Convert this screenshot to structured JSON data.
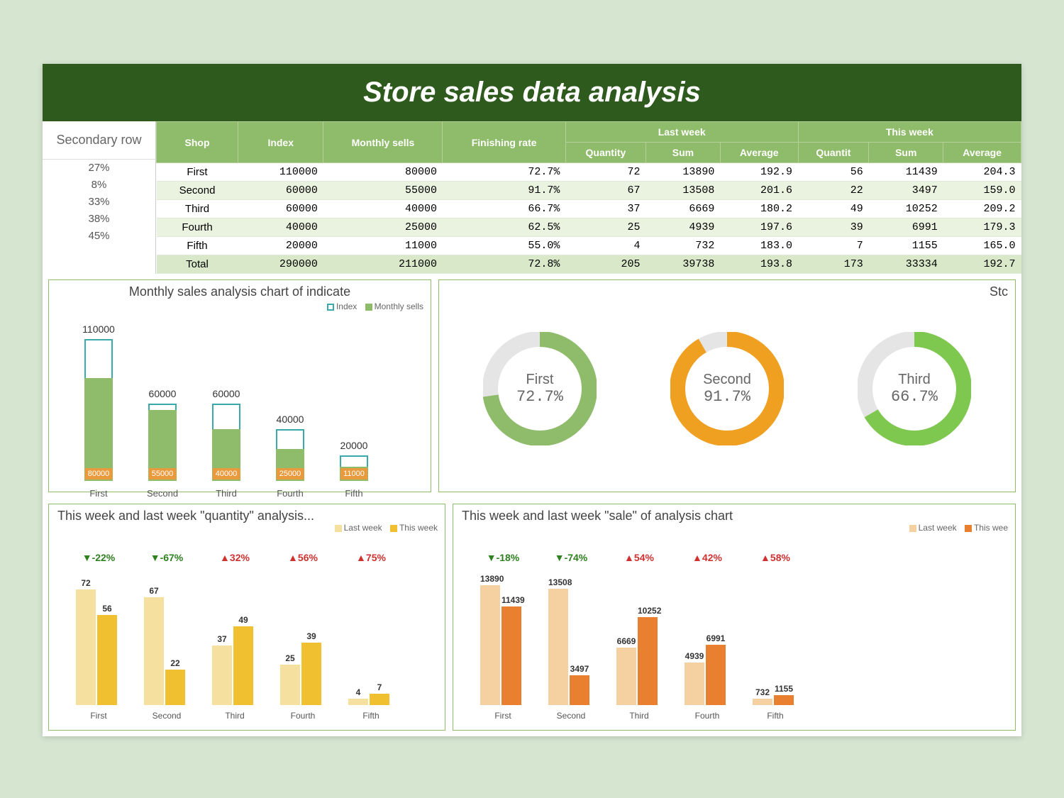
{
  "title": "Store sales data analysis",
  "secondary": {
    "header": "Secondary row",
    "values": [
      "27%",
      "8%",
      "33%",
      "38%",
      "45%"
    ]
  },
  "table": {
    "headers": {
      "shop": "Shop",
      "index": "Index",
      "monthly": "Monthly sells",
      "finishing": "Finishing rate",
      "last_week": "Last week",
      "this_week": "This week",
      "quantity": "Quantity",
      "sum": "Sum",
      "average": "Average",
      "quantit": "Quantit"
    },
    "rows": [
      {
        "shop": "First",
        "index": "110000",
        "monthly": "80000",
        "rate": "72.7%",
        "lq": "72",
        "ls": "13890",
        "la": "192.9",
        "tq": "56",
        "ts": "11439",
        "ta": "204.3"
      },
      {
        "shop": "Second",
        "index": "60000",
        "monthly": "55000",
        "rate": "91.7%",
        "lq": "67",
        "ls": "13508",
        "la": "201.6",
        "tq": "22",
        "ts": "3497",
        "ta": "159.0"
      },
      {
        "shop": "Third",
        "index": "60000",
        "monthly": "40000",
        "rate": "66.7%",
        "lq": "37",
        "ls": "6669",
        "la": "180.2",
        "tq": "49",
        "ts": "10252",
        "ta": "209.2"
      },
      {
        "shop": "Fourth",
        "index": "40000",
        "monthly": "25000",
        "rate": "62.5%",
        "lq": "25",
        "ls": "4939",
        "la": "197.6",
        "tq": "39",
        "ts": "6991",
        "ta": "179.3"
      },
      {
        "shop": "Fifth",
        "index": "20000",
        "monthly": "11000",
        "rate": "55.0%",
        "lq": "4",
        "ls": "732",
        "la": "183.0",
        "tq": "7",
        "ts": "1155",
        "ta": "165.0"
      }
    ],
    "total": {
      "shop": "Total",
      "index": "290000",
      "monthly": "211000",
      "rate": "72.8%",
      "lq": "205",
      "ls": "39738",
      "la": "193.8",
      "tq": "173",
      "ts": "33334",
      "ta": "192.7"
    },
    "row_alt_bg": "#eaf2e0",
    "header_bg": "#8fbc6a"
  },
  "chart_monthly": {
    "title": "Monthly sales analysis chart of indicate",
    "legend": {
      "index": "Index",
      "monthly": "Monthly sells"
    },
    "categories": [
      "First",
      "Second",
      "Third",
      "Fourth",
      "Fifth"
    ],
    "index_vals": [
      110000,
      60000,
      60000,
      40000,
      20000
    ],
    "monthly_vals": [
      80000,
      55000,
      40000,
      25000,
      11000
    ],
    "ymax": 110000,
    "outline_color": "#3ba9a9",
    "fill_color": "#8fbc6a",
    "label_bg": "#e89a3c"
  },
  "chart_donuts": {
    "title_partial": "Stc",
    "items": [
      {
        "label": "First",
        "pct": "72.7%",
        "value": 72.7,
        "color": "#8fbc6a"
      },
      {
        "label": "Second",
        "pct": "91.7%",
        "value": 91.7,
        "color": "#f0a020"
      },
      {
        "label": "Third",
        "pct": "66.7%",
        "value": 66.7,
        "color": "#7fc850"
      }
    ],
    "track_color": "#e5e5e5",
    "stroke_width": 22
  },
  "chart_qty": {
    "title": "This week and last week \"quantity\" analysis...",
    "legend": {
      "last": "Last week",
      "this": "This week"
    },
    "categories": [
      "First",
      "Second",
      "Third",
      "Fourth",
      "Fifth"
    ],
    "last_vals": [
      72,
      67,
      37,
      25,
      4
    ],
    "this_vals": [
      56,
      22,
      49,
      39,
      7
    ],
    "ymax": 75,
    "deltas": [
      {
        "txt": "▼-22%",
        "up": false
      },
      {
        "txt": "▼-67%",
        "up": false
      },
      {
        "txt": "▲32%",
        "up": true
      },
      {
        "txt": "▲56%",
        "up": true
      },
      {
        "txt": "▲75%",
        "up": true
      }
    ],
    "last_color": "#f5e0a0",
    "this_color": "#f0c030",
    "up_color": "#d03030",
    "down_color": "#2e8020"
  },
  "chart_sale": {
    "title": "This week and last week \"sale\" of analysis chart",
    "legend": {
      "last": "Last week",
      "this": "This wee"
    },
    "categories": [
      "First",
      "Second",
      "Third",
      "Fourth",
      "Fifth"
    ],
    "last_vals": [
      13890,
      13508,
      6669,
      4939,
      732
    ],
    "this_vals": [
      11439,
      3497,
      10252,
      6991,
      1155
    ],
    "last_labels": [
      "13890",
      "13508",
      "6669",
      "4939",
      "732"
    ],
    "this_labels": [
      "11439",
      "3497",
      "10252",
      "6991",
      "1155"
    ],
    "ymax": 14000,
    "deltas": [
      {
        "txt": "▼-18%",
        "up": false
      },
      {
        "txt": "▼-74%",
        "up": false
      },
      {
        "txt": "▲54%",
        "up": true
      },
      {
        "txt": "▲42%",
        "up": true
      },
      {
        "txt": "▲58%",
        "up": true
      }
    ],
    "last_color": "#f5d0a0",
    "this_color": "#e88030",
    "up_color": "#d03030",
    "down_color": "#2e8020"
  }
}
